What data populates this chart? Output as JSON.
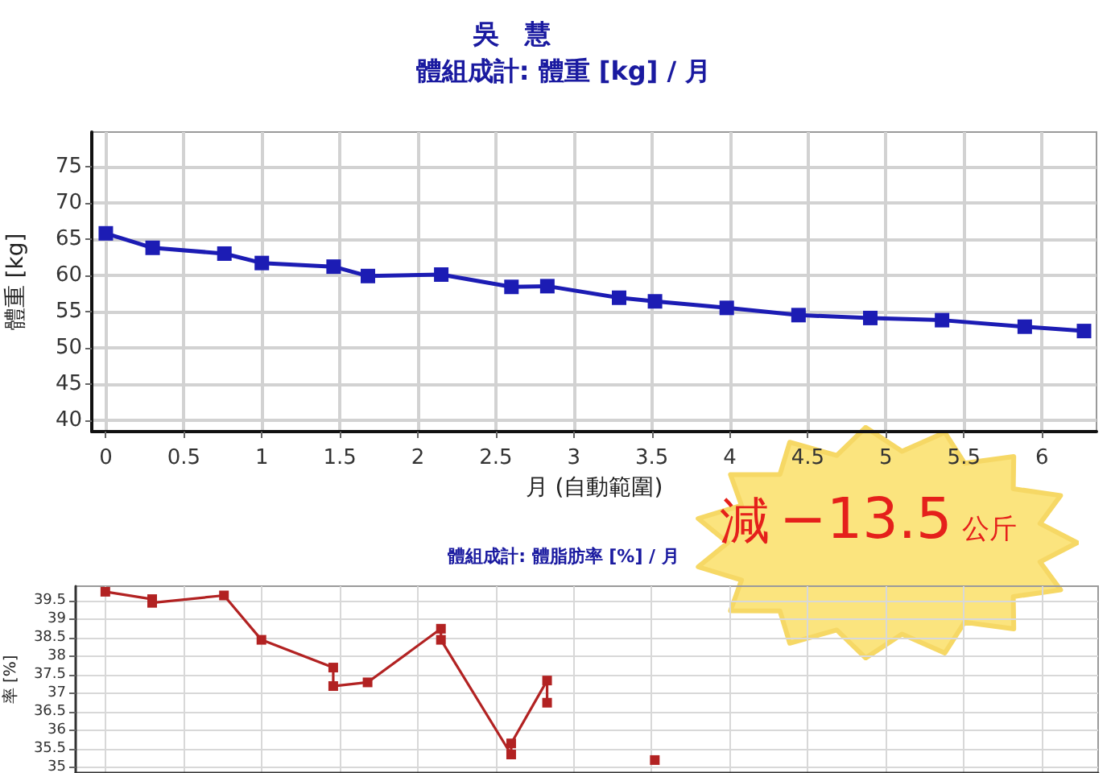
{
  "chart_data": [
    {
      "type": "line",
      "title": "吳　慧",
      "subtitle": "體組成計: 體重 [kg] / 月",
      "xlabel": "月 (自動範圍)",
      "ylabel": "體重 [kg]",
      "x": [
        0,
        0.3,
        0.76,
        1.0,
        1.46,
        1.68,
        2.15,
        2.6,
        2.83,
        3.29,
        3.52,
        3.98,
        4.44,
        4.9,
        5.36,
        5.89,
        6.27
      ],
      "values": [
        65.8,
        63.8,
        63.0,
        61.7,
        61.2,
        59.9,
        60.1,
        58.4,
        58.5,
        56.9,
        56.4,
        55.5,
        54.5,
        54.1,
        53.8,
        52.9,
        52.3
      ],
      "color": "#1c1cb4",
      "xlim": [
        -0.09,
        6.35
      ],
      "xticks": [
        0,
        0.5,
        1,
        1.5,
        2,
        2.5,
        3,
        3.5,
        4,
        4.5,
        5,
        5.5,
        6
      ],
      "ylim": [
        38.4,
        79.8
      ],
      "yticks": [
        40,
        45,
        50,
        55,
        60,
        65,
        70,
        75
      ],
      "grid": true,
      "marker": "square",
      "annotations": [
        "減 −13.5 公斤"
      ]
    },
    {
      "type": "line",
      "title": "體組成計: 體脂肪率 [%] / 月",
      "ylabel": "率 [%]",
      "series": [
        {
          "color": "#b22222",
          "x": [
            0,
            0.3,
            0.3,
            0.76,
            1.0,
            1.46,
            1.46,
            1.68,
            2.15,
            2.15,
            2.6,
            2.6,
            2.83,
            2.83
          ],
          "values": [
            39.75,
            39.55,
            39.45,
            39.65,
            38.45,
            37.7,
            37.2,
            37.3,
            38.75,
            38.45,
            35.35,
            35.65,
            37.35,
            36.75
          ]
        },
        {
          "color": "#b22222",
          "x": [
            3.52
          ],
          "values": [
            35.2
          ]
        }
      ],
      "xlim": [
        -0.19,
        6.36
      ],
      "xticks": [
        0,
        0.5,
        1,
        1.5,
        2,
        2.5,
        3,
        3.5,
        4,
        4.5,
        5,
        5.5,
        6
      ],
      "ylim": [
        34.85,
        39.9
      ],
      "yticks": [
        35,
        35.5,
        36,
        36.5,
        37,
        37.5,
        38,
        38.5,
        39,
        39.5
      ],
      "grid": true,
      "marker": "square",
      "tick_labels": "y"
    }
  ]
}
